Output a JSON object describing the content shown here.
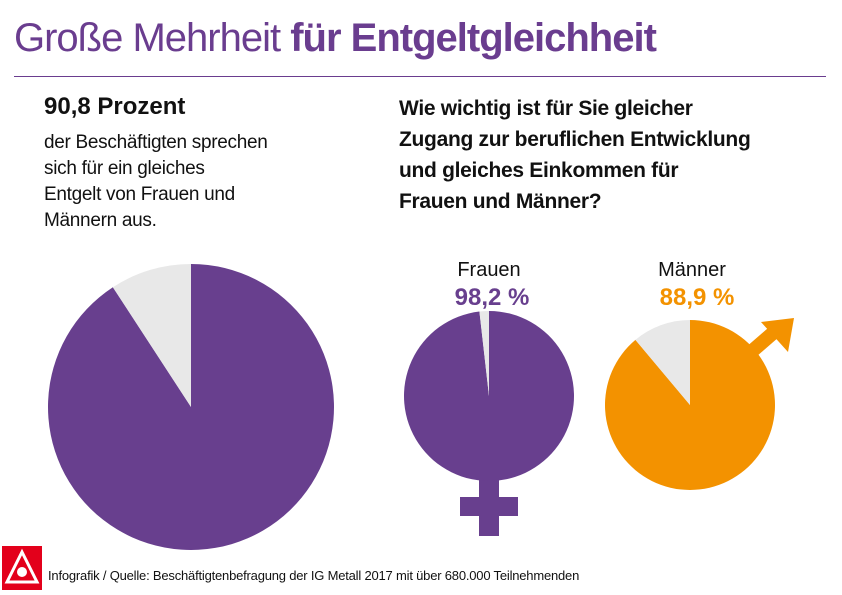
{
  "header": {
    "title_regular": "Große Mehrheit",
    "title_bold": "für Entgeltgleichheit"
  },
  "left_panel": {
    "headline": "90,8 Prozent",
    "text_lines": [
      "der Beschäftigten sprechen",
      "sich für ein gleiches",
      "Entgelt von Frauen und",
      "Männern aus."
    ]
  },
  "right_panel": {
    "question_lines": [
      "Wie wichtig ist für Sie gleicher",
      "Zugang zur beruflichen Entwicklung",
      "und gleiches Einkommen für",
      "Frauen und Männer?"
    ]
  },
  "chart_data": [
    {
      "type": "pie",
      "title": "",
      "slices": [
        {
          "label": "",
          "value": 90.8,
          "color": "#683f8e"
        },
        {
          "label": "",
          "value": 9.2,
          "color": "#e8e8e8"
        }
      ]
    },
    {
      "type": "pie",
      "title": "Frauen",
      "data_label": "98,2 %",
      "slices": [
        {
          "label": "",
          "value": 98.2,
          "color": "#683f8e"
        },
        {
          "label": "",
          "value": 1.8,
          "color": "#e8e8e8"
        }
      ]
    },
    {
      "type": "pie",
      "title": "Männer",
      "data_label": "88,9 %",
      "slices": [
        {
          "label": "",
          "value": 88.9,
          "color": "#f39200"
        },
        {
          "label": "",
          "value": 11.1,
          "color": "#e8e8e8"
        }
      ]
    }
  ],
  "icons": [
    "female-symbol-icon",
    "male-symbol-icon",
    "ig-metall-logo-icon"
  ],
  "footer": {
    "source": "Infografik / Quelle: Beschäftigtenbefragung der IG Metall 2017 mit über 680.000 Teilnehmenden"
  },
  "colors": {
    "accent": "#6a3d8f",
    "purple": "#683f8e",
    "orange": "#f39200",
    "grey": "#e8e8e8",
    "logo_red": "#e3001b"
  }
}
